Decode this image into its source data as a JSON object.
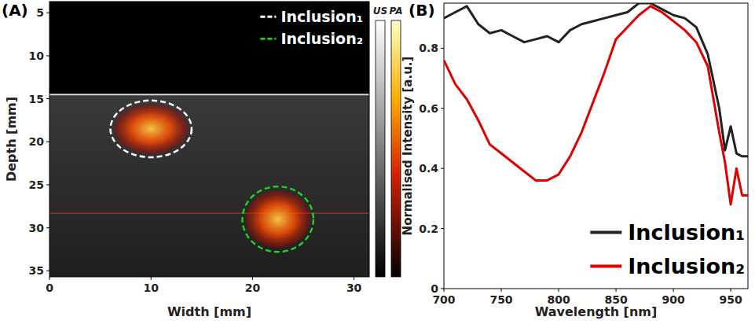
{
  "chart_data": [
    {
      "type": "image",
      "label": "(A)",
      "xlabel": "Width [mm]",
      "ylabel": "Depth [mm]",
      "xlim": [
        0,
        31.5
      ],
      "xticks": [
        0,
        10,
        20,
        30
      ],
      "ylim": [
        3.7,
        35.7
      ],
      "yticks": [
        5,
        10,
        15,
        20,
        25,
        30,
        35
      ],
      "colorbars": [
        "US",
        "PA"
      ],
      "surface_depth": 14.5,
      "line_depth": 28.3,
      "legend": "upper right",
      "inclusions": [
        {
          "name": "Inclusion₁",
          "color": "#ffffff",
          "line_style": "dashed",
          "x": 10,
          "y": 18.5,
          "rx": 4,
          "ry": 3.3
        },
        {
          "name": "Inclusion₂",
          "color": "#22cc22",
          "line_style": "dashed",
          "x": 22.5,
          "y": 29,
          "rx": 3.5,
          "ry": 3.8
        }
      ]
    },
    {
      "type": "line",
      "label": "(B)",
      "xlabel": "Wavelength [nm]",
      "ylabel": "Normalised Intensity [a.u.]",
      "x": [
        700,
        710,
        720,
        730,
        740,
        750,
        760,
        770,
        780,
        790,
        800,
        810,
        820,
        830,
        840,
        850,
        860,
        870,
        880,
        890,
        900,
        910,
        920,
        930,
        940,
        945,
        950,
        955,
        960,
        965
      ],
      "xlim": [
        700,
        965
      ],
      "xticks": [
        700,
        750,
        800,
        850,
        900,
        950
      ],
      "ylim": [
        0,
        0.95
      ],
      "yticks": [
        0,
        0.2,
        0.4,
        0.6,
        0.8
      ],
      "legend": "lower right",
      "series": [
        {
          "name": "Inclusion₁",
          "color": "#222222",
          "values": [
            0.9,
            0.92,
            0.94,
            0.88,
            0.85,
            0.86,
            0.84,
            0.82,
            0.83,
            0.84,
            0.82,
            0.86,
            0.88,
            0.89,
            0.9,
            0.91,
            0.92,
            0.95,
            0.95,
            0.93,
            0.91,
            0.9,
            0.87,
            0.78,
            0.6,
            0.46,
            0.54,
            0.45,
            0.44,
            0.44
          ]
        },
        {
          "name": "Inclusion₂",
          "color": "#e00000",
          "values": [
            0.76,
            0.68,
            0.63,
            0.56,
            0.48,
            0.45,
            0.42,
            0.39,
            0.36,
            0.36,
            0.38,
            0.44,
            0.52,
            0.62,
            0.72,
            0.83,
            0.87,
            0.91,
            0.94,
            0.92,
            0.89,
            0.86,
            0.82,
            0.74,
            0.52,
            0.42,
            0.28,
            0.4,
            0.31,
            0.31
          ]
        }
      ]
    }
  ]
}
